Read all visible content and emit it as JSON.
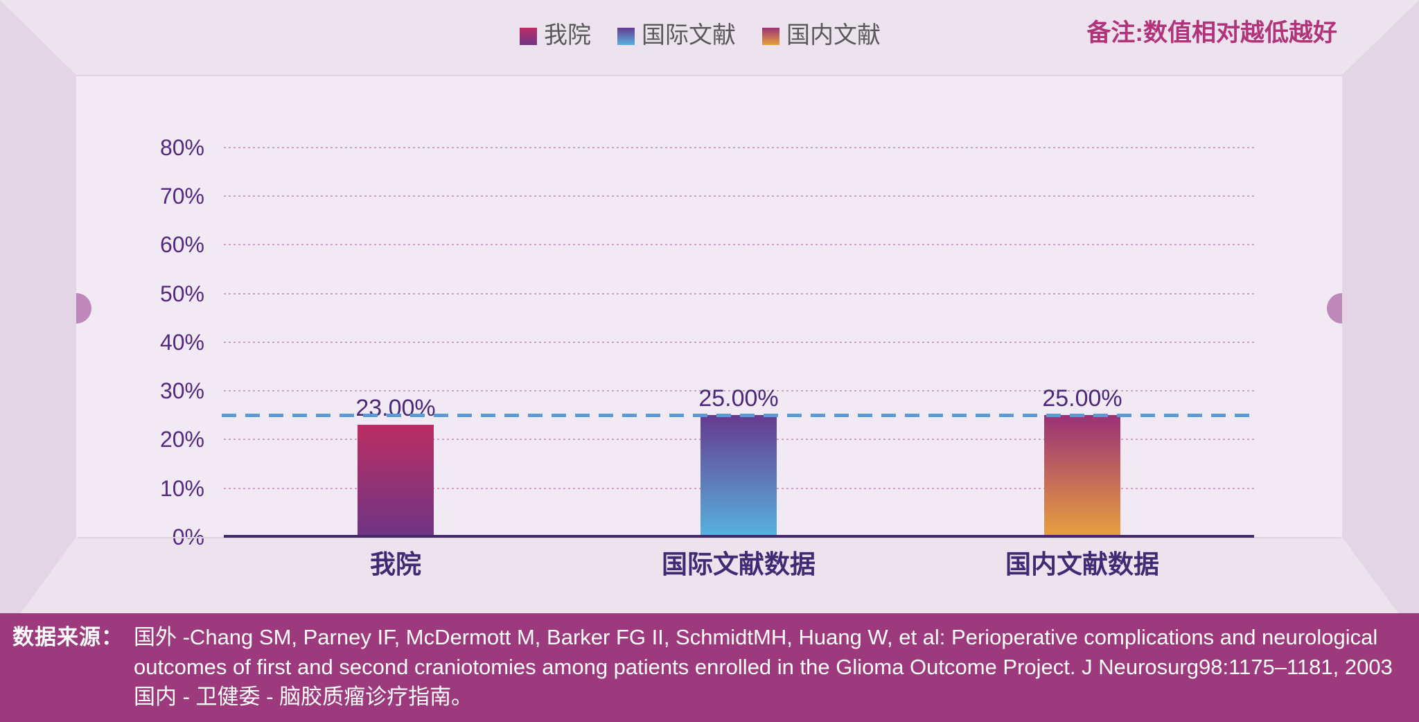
{
  "legend": {
    "items": [
      {
        "label": "我院"
      },
      {
        "label": "国际文献"
      },
      {
        "label": "国内文献"
      }
    ]
  },
  "note": "备注:数值相对越低越好",
  "source": {
    "label": "数据来源：",
    "lines": [
      "国外 -Chang SM, Parney IF, McDermott M, Barker FG II, SchmidtMH, Huang W, et al: Perioperative complications and neurological",
      "outcomes of first and second craniotomies among patients enrolled in the Glioma Outcome Project. J Neurosurg98:1175–1181, 2003",
      "国内 - 卫健委 - 脑胶质瘤诊疗指南。"
    ]
  },
  "chart_data": {
    "type": "bar",
    "categories": [
      "我院",
      "国际文献数据",
      "国内文献数据"
    ],
    "values": [
      23,
      25,
      25
    ],
    "value_labels": [
      "23.00%",
      "25.00%",
      "25.00%"
    ],
    "series": [
      {
        "name": "我院",
        "color_top": "#bb2e63",
        "color_bottom": "#6e3584"
      },
      {
        "name": "国际文献",
        "color_top": "#663a8e",
        "color_bottom": "#57b2df"
      },
      {
        "name": "国内文献",
        "color_top": "#9b3177",
        "color_bottom": "#e8a03e"
      }
    ],
    "reference_line": {
      "value": 25,
      "color": "#5b9bd5",
      "style": "dashed"
    },
    "y_ticks": [
      "0%",
      "10%",
      "20%",
      "30%",
      "40%",
      "50%",
      "60%",
      "70%",
      "80%"
    ],
    "ylim": [
      0,
      85
    ],
    "ylabel": "",
    "xlabel": "",
    "title": "",
    "grid": true,
    "legend_position": "top"
  },
  "colors": {
    "band_background": "#9d3a7e",
    "stage_wall": "#e4d5e6",
    "stage_face": "#f1eaf4",
    "axis_line": "#44266a",
    "tick_text": "#53287e",
    "category_text": "#402a73",
    "note_text": "#b13379",
    "legend_text": "#595959",
    "reference_line": "#5b9bd5",
    "handle": "#bf88ba"
  }
}
